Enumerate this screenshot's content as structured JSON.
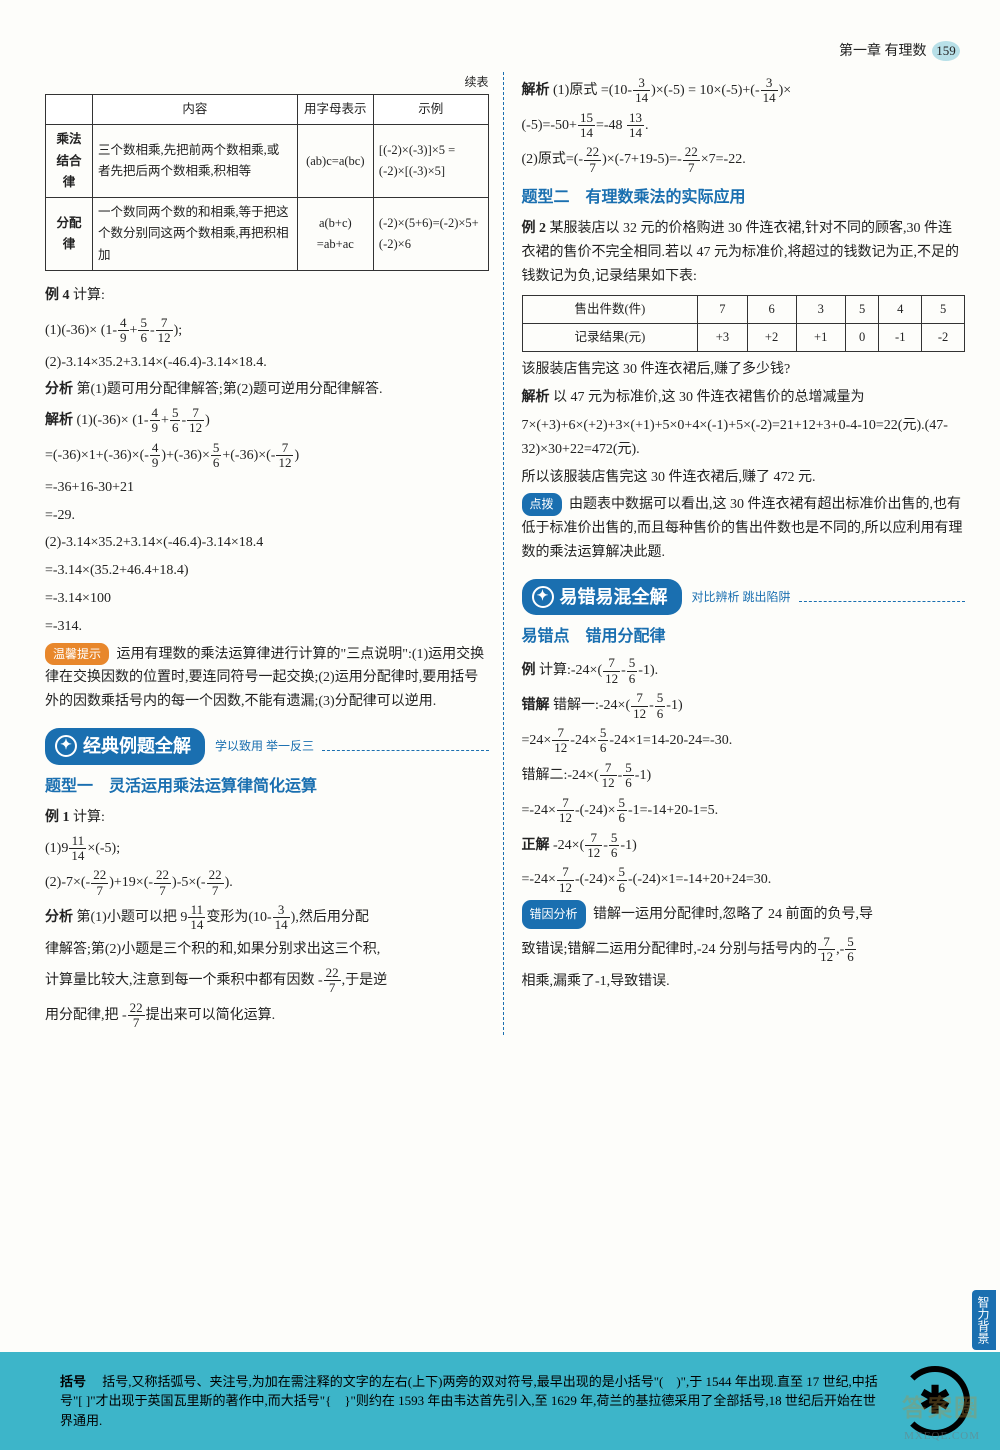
{
  "header": {
    "chapter": "第一章",
    "subject": "有理数",
    "page": "159"
  },
  "leftTable": {
    "continued": "续表",
    "headers": [
      "",
      "内容",
      "用字母表示",
      "示例"
    ],
    "rows": [
      {
        "name": "乘法结合律",
        "content": "三个数相乘,先把前两个数相乘,或者先把后两个数相乘,积相等",
        "formula": "(ab)c=a(bc)",
        "example": "[(-2)×(-3)]×5 = (-2)×[(-3)×5]"
      },
      {
        "name": "分配律",
        "content": "一个数同两个数的和相乘,等于把这个数分别同这两个数相乘,再把积相加",
        "formula": "a(b+c) =ab+ac",
        "example": "(-2)×(5+6)=(-2)×5+(-2)×6"
      }
    ]
  },
  "ex4": {
    "label": "例 4",
    "calc": "计算:",
    "line1a": "(1)(-36)×",
    "line1b": ";",
    "line2": "(2)-3.14×35.2+3.14×(-46.4)-3.14×18.4.",
    "analysisLabel": "分析",
    "analysis": "第(1)题可用分配律解答;第(2)题可逆用分配律解答.",
    "solLabel": "解析",
    "s1": "(1)(-36)×",
    "s2": "=(-36)×1+(-36)×",
    "s2b": "+(-36)×",
    "s2c": "+(-36)×",
    "s3": "=-36+16-30+21",
    "s4": "=-29.",
    "s5": "(2)-3.14×35.2+3.14×(-46.4)-3.14×18.4",
    "s6": "=-3.14×(35.2+46.4+18.4)",
    "s7": "=-3.14×100",
    "s8": "=-314."
  },
  "tip1": {
    "tag": "温馨提示",
    "text": "运用有理数的乘法运算律进行计算的\"三点说明\":(1)运用交换律在交换因数的位置时,要连同符号一起交换;(2)运用分配律时,要用括号外的因数乘括号内的每一个因数,不能有遗漏;(3)分配律可以逆用."
  },
  "banner1": {
    "title": "经典例题全解",
    "sub": "学以致用  举一反三"
  },
  "topic1": {
    "title": "题型一　灵活运用乘法运算律简化运算"
  },
  "ex1": {
    "label": "例 1",
    "calc": "计算:",
    "l1a": "(1)9",
    "l1b": "×(-5);",
    "l2a": "(2)-7×",
    "l2b": "+19×",
    "l2c": "-5×",
    "l2d": ".",
    "anLabel": "分析",
    "an1": "第(1)小题可以把 9",
    "an2": "变形为",
    "an3": ",然后用分配",
    "an4": "律解答;第(2)小题是三个积的和,如果分别求出这三个积,",
    "an5": "计算量比较大,注意到每一个乘积中都有因数",
    "an6": ",于是逆",
    "an7": "用分配律,把",
    "an8": "提出来可以简化运算."
  },
  "right": {
    "solLabel": "解析",
    "r1a": "(1)原式 =",
    "r1b": "×(-5) = 10×(-5)+",
    "r1c": "×",
    "r2a": "(-5)=-50+",
    "r2b": "=-48",
    "r3a": "(2)原式=",
    "r3b": "×(-7+19-5)=",
    "r3c": "×7=-22."
  },
  "topic2": {
    "title": "题型二　有理数乘法的实际应用"
  },
  "ex2": {
    "label": "例 2",
    "text": "某服装店以 32 元的价格购进 30 件连衣裙,针对不同的顾客,30 件连衣裙的售价不完全相同.若以 47 元为标准价,将超过的钱数记为正,不足的钱数记为负,记录结果如下表:",
    "tableH": [
      "售出件数(件)",
      "7",
      "6",
      "3",
      "5",
      "4",
      "5"
    ],
    "tableR": [
      "记录结果(元)",
      "+3",
      "+2",
      "+1",
      "0",
      "-1",
      "-2"
    ],
    "q": "该服装店售完这 30 件连衣裙后,赚了多少钱?",
    "solLabel": "解析",
    "sol1": "以 47 元为标准价,这 30 件连衣裙售价的总增减量为",
    "sol2": "7×(+3)+6×(+2)+3×(+1)+5×0+4×(-1)+5×(-2)=21+12+3+0-4-10=22(元).(47-32)×30+22=472(元).",
    "sol3": "所以该服装店售完这 30 件连衣裙后,赚了 472 元.",
    "tipTag": "点拨",
    "tip": "由题表中数据可以看出,这 30 件连衣裙有超出标准价出售的,也有低于标准价出售的,而且每种售价的售出件数也是不同的,所以应利用有理数的乘法运算解决此题."
  },
  "banner2": {
    "title": "易错易混全解",
    "sub": "对比辨析  跳出陷阱"
  },
  "mistake": {
    "title": "易错点　错用分配律",
    "exLabel": "例",
    "ex": "计算:-24×",
    "wrongLabel": "错解",
    "w1": "错解一:-24×",
    "w2a": "=24×",
    "w2b": "-24×",
    "w2c": "-24×1=14-20-24=-30.",
    "w3": "错解二:-24×",
    "w4a": "=-24×",
    "w4b": "-(-24)×",
    "w4c": "-1=-14+20-1=5.",
    "rightLabel": "正解",
    "c1": "-24×",
    "c2a": "=-24×",
    "c2b": "-(-24)×",
    "c2c": "-(-24)×1=-14+20+24=30.",
    "reasonTag": "错因分析",
    "reason1": "错解一运用分配律时,忽略了 24 前面的负号,导",
    "reason2": "致错误;错解二运用分配律时,-24 分别与括号内的",
    "reason3": "相乘,漏乘了-1,导致错误."
  },
  "footer": {
    "title": "括号",
    "text": "括号,又称括弧号、夹注号,为加在需注释的文字的左右(上下)两旁的双对符号,最早出现的是小括号\"(　)\",于 1544 年出现.直至 17 世纪,中括号\"[ ]\"才出现于英国瓦里斯的著作中,而大括号\"{　}\"则约在 1593 年由韦达首先引入,至 1629 年,荷兰的基拉德采用了全部括号,18 世纪后开始在世界通用."
  },
  "sideTab": "智力背景",
  "watermark": "答案圈",
  "wmSub": "MXEQE.COM"
}
